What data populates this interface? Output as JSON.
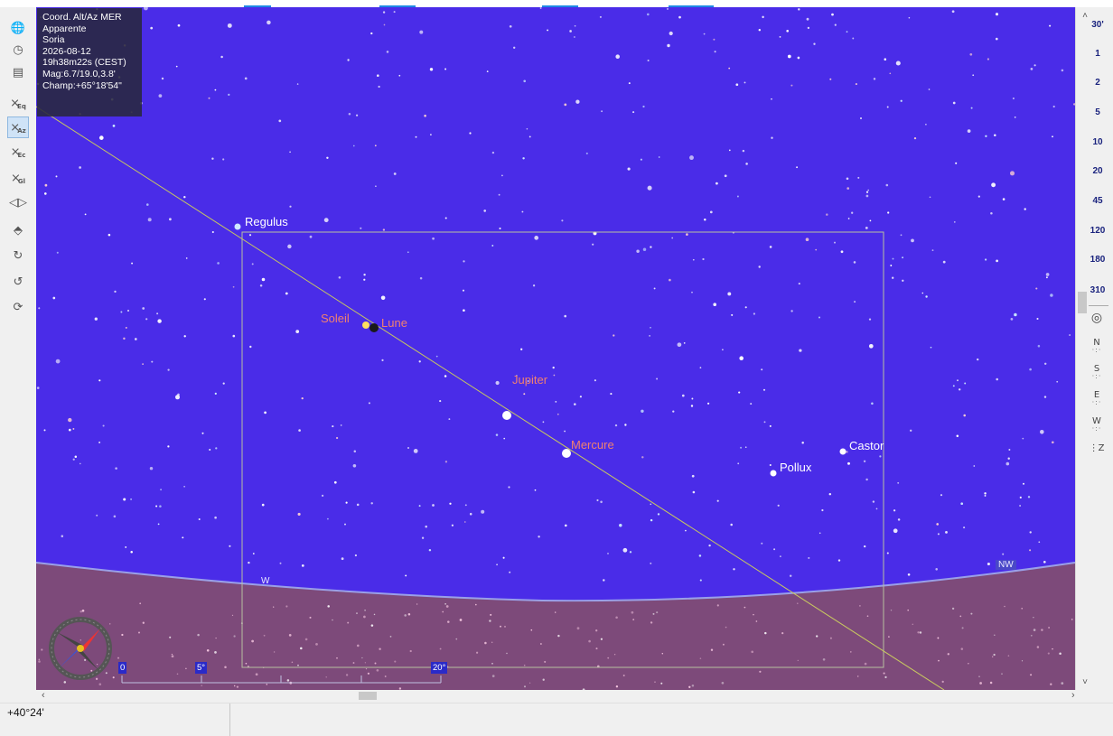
{
  "info_panel": {
    "lines": [
      "Coord. Alt/Az MER",
      "Apparente",
      "Soria",
      "2026-08-12",
      "19h38m22s (CEST)",
      "Mag:6.7/19.0,3.8'",
      "Champ:+65°18'54\""
    ]
  },
  "left_toolbar": {
    "items": [
      {
        "name": "globe-icon",
        "glyph": "🌐",
        "sub": ""
      },
      {
        "name": "clock-icon",
        "glyph": "◷",
        "sub": ""
      },
      {
        "name": "panel-icon",
        "glyph": "▤",
        "sub": ""
      },
      {
        "name": "equatorial-grid-icon",
        "glyph": "⨯",
        "sub": "Eq"
      },
      {
        "name": "altaz-grid-icon",
        "glyph": "⨯",
        "sub": "Az"
      },
      {
        "name": "ecliptic-grid-icon",
        "glyph": "⨯",
        "sub": "Ec"
      },
      {
        "name": "galactic-grid-icon",
        "glyph": "⨯",
        "sub": "Gl"
      },
      {
        "name": "flip-horizontal-icon",
        "glyph": "◁▷",
        "sub": ""
      },
      {
        "name": "flip-vertical-icon",
        "glyph": "⬘",
        "sub": ""
      },
      {
        "name": "rotate-right-icon",
        "glyph": "↻",
        "sub": ""
      },
      {
        "name": "rotate-left-icon",
        "glyph": "↺",
        "sub": ""
      },
      {
        "name": "rotate-reset-icon",
        "glyph": "⟳",
        "sub": ""
      }
    ],
    "active_index": 4
  },
  "right_toolbar": {
    "zoom_levels": [
      "30'",
      "1",
      "2",
      "5",
      "10",
      "20",
      "45",
      "120",
      "180",
      "310"
    ],
    "directions": [
      "N",
      "S",
      "E",
      "W",
      "Z"
    ]
  },
  "sky": {
    "labels": {
      "regulus": "Regulus",
      "soleil": "Soleil",
      "lune": "Lune",
      "jupiter": "Jupiter",
      "mercure": "Mercure",
      "pollux": "Pollux",
      "castor": "Castor"
    },
    "directions": {
      "west": "W",
      "northwest": "NW"
    },
    "scale": {
      "zero": "0",
      "five": "5°",
      "twenty": "20°"
    },
    "colors": {
      "sky": "#4a2ce8",
      "ground": "#7d4a7a",
      "horizon_line": "#9aa0e8",
      "ecliptic": "#c8c860",
      "planet_label": "#f08070",
      "star_label": "#ffffff"
    }
  },
  "status_bar": {
    "coordinate": "+40°24'"
  }
}
